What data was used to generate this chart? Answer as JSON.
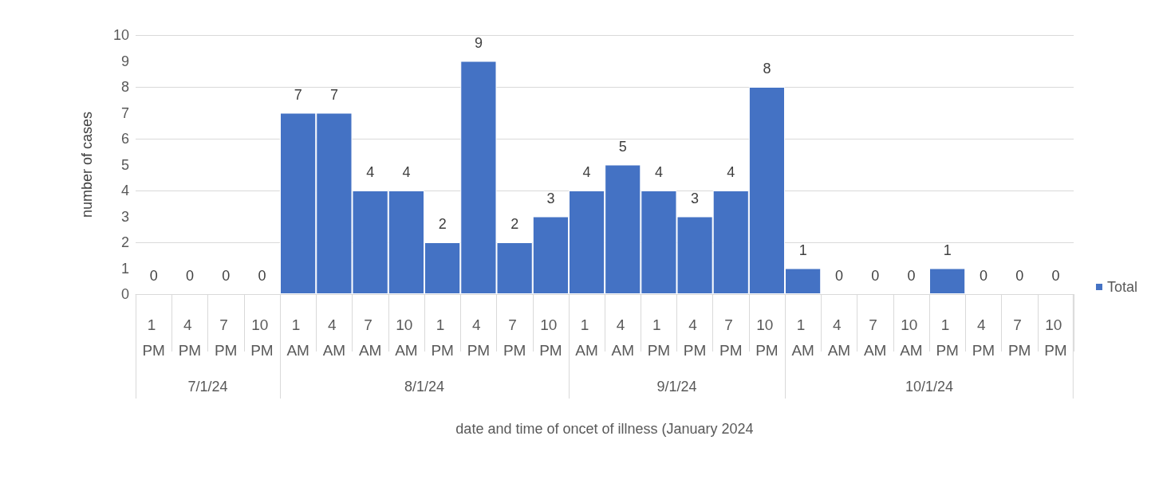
{
  "chart_data": [
    {
      "type": "bar",
      "xlabel": "7/1/24",
      "ylabel": "number of cases",
      "categories": [
        "1 PM",
        "4 PM",
        "7 PM",
        "10 PM"
      ],
      "series": [
        {
          "color": "#4472c4",
          "values": [
            0,
            0,
            0,
            0
          ]
        }
      ],
      "ylim": [
        0,
        10
      ],
      "yticks": [
        0,
        1,
        2,
        3,
        4,
        5,
        6,
        7,
        8,
        9,
        10
      ],
      "grid": "y",
      "data_labels": true
    },
    {
      "type": "bar",
      "xlabel": "8/1/24",
      "categories": [
        "1 AM",
        "4 AM",
        "7 AM",
        "10 AM",
        "1 PM",
        "4 PM",
        "7 PM",
        "10 PM"
      ],
      "series": [
        {
          "color": "#4472c4",
          "values": [
            7,
            7,
            4,
            4,
            2,
            9,
            2,
            3
          ]
        }
      ],
      "ylim": [
        0,
        10
      ],
      "yticks": [
        0,
        1,
        2,
        3,
        4,
        5,
        6,
        7,
        8,
        9,
        10
      ],
      "grid": "y",
      "data_labels": true,
      "tick_labels": "x"
    },
    {
      "type": "bar",
      "xlabel": "9/1/24",
      "categories": [
        "1 AM",
        "4 AM",
        "1 PM",
        "4 PM",
        "7 PM",
        "10 PM"
      ],
      "series": [
        {
          "color": "#4472c4",
          "values": [
            4,
            5,
            4,
            3,
            4,
            8
          ]
        }
      ],
      "annotations": [
        "date and time of oncet of illness (January 2024"
      ],
      "ylim": [
        0,
        10
      ],
      "yticks": [
        0,
        1,
        2,
        3,
        4,
        5,
        6,
        7,
        8,
        9,
        10
      ],
      "grid": "y",
      "data_labels": true,
      "tick_labels": "x"
    },
    {
      "type": "bar",
      "xlabel": "10/1/24",
      "categories": [
        "1 AM",
        "4 AM",
        "7 AM",
        "10 AM",
        "1 PM",
        "4 PM",
        "7 PM",
        "10 PM"
      ],
      "series": [
        {
          "name": "Total",
          "color": "#4472c4",
          "values": [
            1,
            0,
            0,
            0,
            1,
            0,
            0,
            0
          ]
        }
      ],
      "ylim": [
        0,
        10
      ],
      "yticks": [
        0,
        1,
        2,
        3,
        4,
        5,
        6,
        7,
        8,
        9,
        10
      ],
      "grid": "y",
      "data_labels": true,
      "tick_labels": "x",
      "legend": "right"
    }
  ]
}
